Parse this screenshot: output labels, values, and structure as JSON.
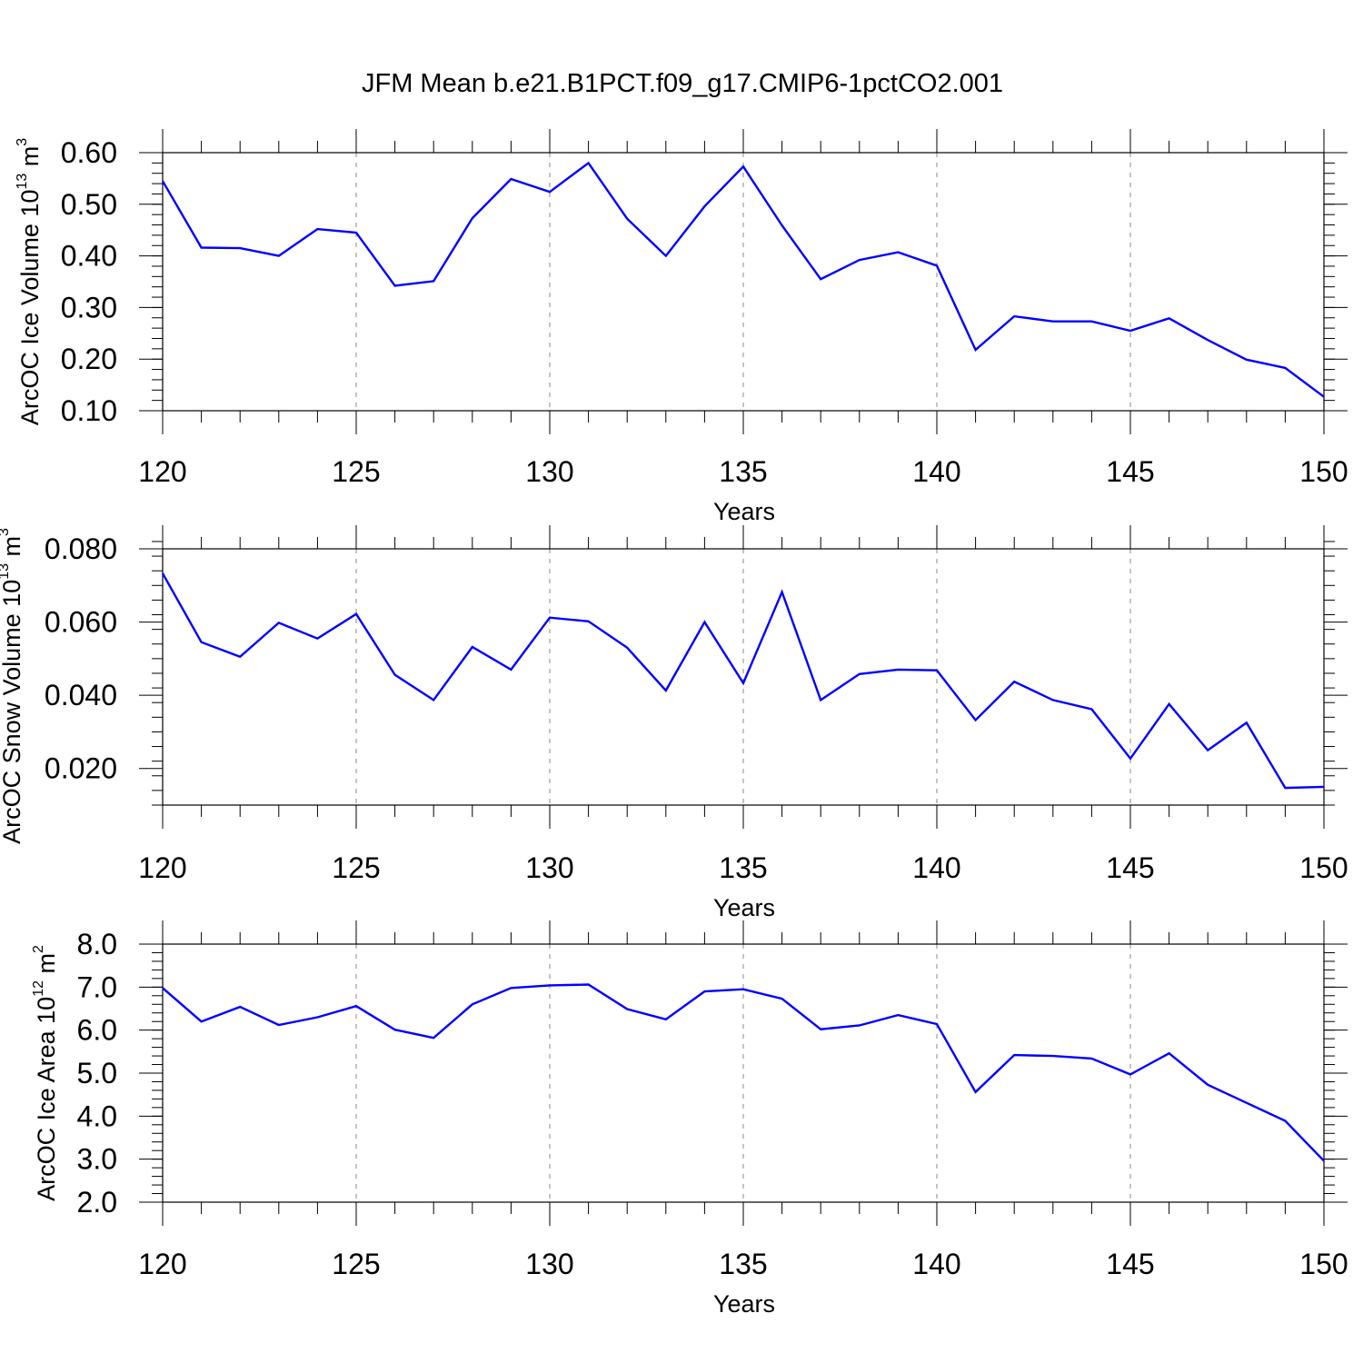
{
  "title": "JFM Mean b.e21.B1PCT.f09_g17.CMIP6-1pctCO2.001",
  "line_color": "#0000ff",
  "grid_color": "#888888",
  "chart_data": [
    {
      "type": "line",
      "ylabel": "ArcOC Ice Volume 10",
      "ylabel_exp": "13",
      "ylabel_unit": " m",
      "ylabel_unit_exp": "3",
      "xlabel": "Years",
      "xlim": [
        120,
        150
      ],
      "ylim": [
        0.1,
        0.6
      ],
      "yticks": [
        "0.10",
        "0.20",
        "0.30",
        "0.40",
        "0.50",
        "0.60"
      ],
      "xticks": [
        "120",
        "125",
        "130",
        "135",
        "140",
        "145",
        "150"
      ],
      "grid": "vertical dashed at major x ticks",
      "x": [
        120,
        121,
        122,
        123,
        124,
        125,
        126,
        127,
        128,
        129,
        130,
        131,
        132,
        133,
        134,
        135,
        136,
        137,
        138,
        139,
        140,
        141,
        142,
        143,
        144,
        145,
        146,
        147,
        148,
        149,
        150
      ],
      "values": [
        0.545,
        0.416,
        0.415,
        0.4,
        0.452,
        0.445,
        0.342,
        0.351,
        0.473,
        0.549,
        0.524,
        0.58,
        0.472,
        0.4,
        0.496,
        0.573,
        0.459,
        0.355,
        0.392,
        0.407,
        0.381,
        0.218,
        0.283,
        0.273,
        0.273,
        0.255,
        0.279,
        0.237,
        0.199,
        0.183,
        0.127
      ]
    },
    {
      "type": "line",
      "ylabel": "ArcOC Snow Volume 10",
      "ylabel_exp": "13",
      "ylabel_unit": " m",
      "ylabel_unit_exp": "3",
      "xlabel": "Years",
      "xlim": [
        120,
        150
      ],
      "ylim": [
        0.01,
        0.08
      ],
      "yticks": [
        "0.020",
        "0.040",
        "0.060",
        "0.080"
      ],
      "ytick_values": [
        0.02,
        0.04,
        0.06,
        0.08
      ],
      "xticks": [
        "120",
        "125",
        "130",
        "135",
        "140",
        "145",
        "150"
      ],
      "grid": "vertical dashed at major x ticks",
      "x": [
        120,
        121,
        122,
        123,
        124,
        125,
        126,
        127,
        128,
        129,
        130,
        131,
        132,
        133,
        134,
        135,
        136,
        137,
        138,
        139,
        140,
        141,
        142,
        143,
        144,
        145,
        146,
        147,
        148,
        149,
        150
      ],
      "values": [
        0.0733,
        0.0545,
        0.0505,
        0.0598,
        0.0555,
        0.0622,
        0.0456,
        0.0387,
        0.0532,
        0.047,
        0.0612,
        0.0602,
        0.053,
        0.0413,
        0.06,
        0.0433,
        0.0682,
        0.0387,
        0.0458,
        0.047,
        0.0468,
        0.0332,
        0.0437,
        0.0387,
        0.0362,
        0.0227,
        0.0376,
        0.025,
        0.0325,
        0.0147,
        0.015
      ]
    },
    {
      "type": "line",
      "ylabel": "ArcOC Ice Area 10",
      "ylabel_exp": "12",
      "ylabel_unit": " m",
      "ylabel_unit_exp": "2",
      "xlabel": "Years",
      "xlim": [
        120,
        150
      ],
      "ylim": [
        2.0,
        8.0
      ],
      "yticks": [
        "2.0",
        "3.0",
        "4.0",
        "5.0",
        "6.0",
        "7.0",
        "8.0"
      ],
      "xticks": [
        "120",
        "125",
        "130",
        "135",
        "140",
        "145",
        "150"
      ],
      "grid": "vertical dashed at major x ticks",
      "x": [
        120,
        121,
        122,
        123,
        124,
        125,
        126,
        127,
        128,
        129,
        130,
        131,
        132,
        133,
        134,
        135,
        136,
        137,
        138,
        139,
        140,
        141,
        142,
        143,
        144,
        145,
        146,
        147,
        148,
        149,
        150
      ],
      "values": [
        6.98,
        6.2,
        6.54,
        6.12,
        6.3,
        6.56,
        6.01,
        5.82,
        6.6,
        6.98,
        7.04,
        7.06,
        6.49,
        6.25,
        6.9,
        6.95,
        6.73,
        6.02,
        6.11,
        6.35,
        6.14,
        4.56,
        5.42,
        5.4,
        5.34,
        4.97,
        5.46,
        4.73,
        4.31,
        3.89,
        2.96
      ]
    }
  ]
}
